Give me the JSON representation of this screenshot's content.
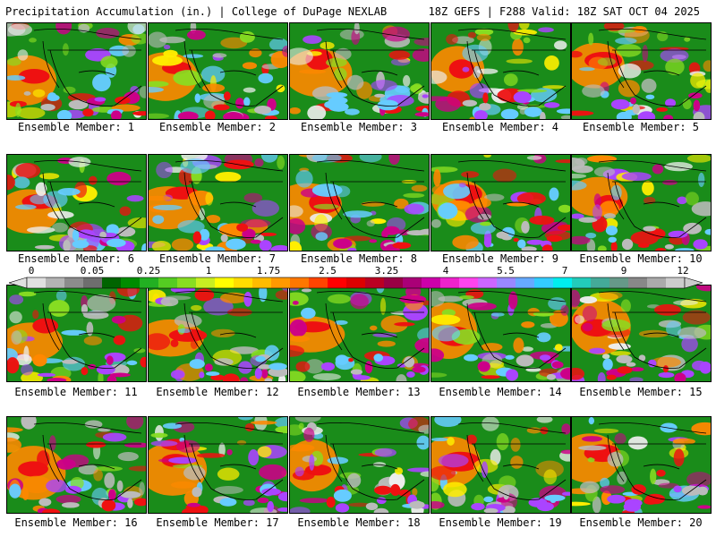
{
  "header": {
    "left": "Precipitation Accumulation (in.) | College of DuPage NEXLAB",
    "right": "18Z GEFS | F288 Valid: 18Z SAT OCT 04 2025"
  },
  "member_prefix": "Ensemble Member: ",
  "members": [
    {
      "num": "1",
      "label": "Ensemble Member: 1"
    },
    {
      "num": "2",
      "label": "Ensemble Member: 2"
    },
    {
      "num": "3",
      "label": "Ensemble Member: 3"
    },
    {
      "num": "4",
      "label": "Ensemble Member: 4"
    },
    {
      "num": "5",
      "label": "Ensemble Member: 5"
    },
    {
      "num": "6",
      "label": "Ensemble Member: 6"
    },
    {
      "num": "7",
      "label": "Ensemble Member: 7"
    },
    {
      "num": "8",
      "label": "Ensemble Member: 8"
    },
    {
      "num": "9",
      "label": "Ensemble Member: 9"
    },
    {
      "num": "10",
      "label": "Ensemble Member: 10"
    },
    {
      "num": "11",
      "label": "Ensemble Member: 11"
    },
    {
      "num": "12",
      "label": "Ensemble Member: 12"
    },
    {
      "num": "13",
      "label": "Ensemble Member: 13"
    },
    {
      "num": "14",
      "label": "Ensemble Member: 14"
    },
    {
      "num": "15",
      "label": "Ensemble Member: 15"
    },
    {
      "num": "16",
      "label": "Ensemble Member: 16"
    },
    {
      "num": "17",
      "label": "Ensemble Member: 17"
    },
    {
      "num": "18",
      "label": "Ensemble Member: 18"
    },
    {
      "num": "19",
      "label": "Ensemble Member: 19"
    },
    {
      "num": "20",
      "label": "Ensemble Member: 20"
    }
  ],
  "colorbar": {
    "labels": [
      "0",
      "0.05",
      "0.25",
      "1",
      "1.75",
      "2.5",
      "3.25",
      "4",
      "5.5",
      "7",
      "9",
      "12"
    ],
    "colors": [
      "#e0e0e0",
      "#b4b4b4",
      "#8c8c8c",
      "#6e6e6e",
      "#006400",
      "#008c00",
      "#22b022",
      "#55cc22",
      "#88dd22",
      "#c8ee22",
      "#ffff00",
      "#ffdd00",
      "#ffbb00",
      "#ff9900",
      "#ff7700",
      "#ff4400",
      "#ff0000",
      "#dd0000",
      "#bb0022",
      "#990044",
      "#aa0077",
      "#cc00aa",
      "#ee22cc",
      "#ff44ee",
      "#cc66ff",
      "#9988ff",
      "#66aaff",
      "#33ccff",
      "#00eeee",
      "#22ccbb",
      "#44aa99",
      "#669988",
      "#888888",
      "#aaaaaa",
      "#cccccc"
    ]
  },
  "field_colors": {
    "land": "#1a8c1a",
    "light": "#88dd22",
    "yellow": "#ffee00",
    "orange": "#ff8800",
    "red": "#ee1111",
    "magenta": "#cc0088",
    "purple": "#aa44ff",
    "cyan": "#66ccff",
    "gray": "#bbbbbb",
    "white": "#eeeeee",
    "border": "#000000"
  }
}
